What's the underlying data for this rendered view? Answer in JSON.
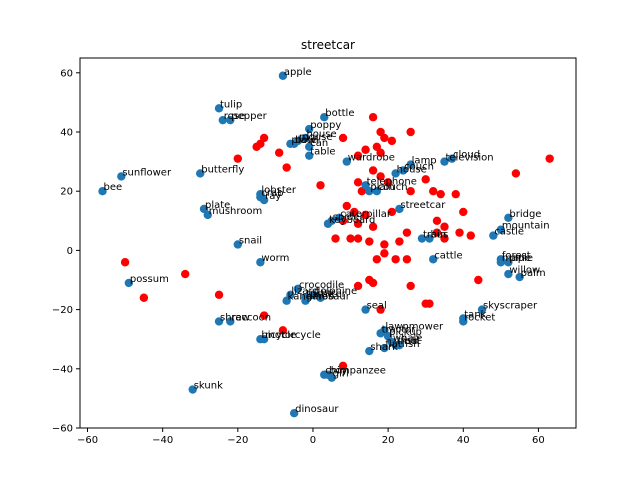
{
  "chart_data": {
    "type": "scatter",
    "title": "streetcar",
    "xlabel": "",
    "ylabel": "",
    "xlim": [
      -62,
      70
    ],
    "ylim": [
      -60,
      65
    ],
    "x_ticks": [
      -60,
      -40,
      -20,
      0,
      20,
      40,
      60
    ],
    "y_ticks": [
      -60,
      -40,
      -20,
      0,
      20,
      40,
      60
    ],
    "grid": false,
    "colors": {
      "labeled": "#1f77b4",
      "unlabeled": "#ff0000"
    },
    "labeled_points": [
      {
        "x": -8,
        "y": 59,
        "label": "apple"
      },
      {
        "x": -25,
        "y": 48,
        "label": "tulip"
      },
      {
        "x": -24,
        "y": 44,
        "label": "rose"
      },
      {
        "x": -22,
        "y": 44,
        "label": "pepper"
      },
      {
        "x": 3,
        "y": 45,
        "label": "bottle"
      },
      {
        "x": -1,
        "y": 41,
        "label": "poppy"
      },
      {
        "x": -2,
        "y": 38,
        "label": "house"
      },
      {
        "x": -4,
        "y": 37,
        "label": "mouse"
      },
      {
        "x": -5,
        "y": 36,
        "label": "bowl"
      },
      {
        "x": -6,
        "y": 36,
        "label": "plate"
      },
      {
        "x": -1,
        "y": 35,
        "label": "can"
      },
      {
        "x": -1,
        "y": 32,
        "label": "table"
      },
      {
        "x": 9,
        "y": 30,
        "label": "wardrobe"
      },
      {
        "x": 37,
        "y": 31,
        "label": "cloud"
      },
      {
        "x": 35,
        "y": 30,
        "label": "television"
      },
      {
        "x": 26,
        "y": 29,
        "label": "lamp"
      },
      {
        "x": 24,
        "y": 27,
        "label": "couch"
      },
      {
        "x": 22,
        "y": 26,
        "label": "house"
      },
      {
        "x": 14,
        "y": 22,
        "label": "telephone"
      },
      {
        "x": -30,
        "y": 26,
        "label": "butterfly"
      },
      {
        "x": -51,
        "y": 25,
        "label": "sunflower"
      },
      {
        "x": -56,
        "y": 20,
        "label": "bee"
      },
      {
        "x": 15,
        "y": 20,
        "label": "plain"
      },
      {
        "x": 17,
        "y": 20,
        "label": "couch"
      },
      {
        "x": -14,
        "y": 19,
        "label": "lobster"
      },
      {
        "x": -14,
        "y": 18,
        "label": "crab"
      },
      {
        "x": -13,
        "y": 17,
        "label": "ray"
      },
      {
        "x": -29,
        "y": 14,
        "label": "plate"
      },
      {
        "x": -28,
        "y": 12,
        "label": "mushroom"
      },
      {
        "x": 23,
        "y": 14,
        "label": "streetcar"
      },
      {
        "x": 7,
        "y": 11,
        "label": "caterpillar"
      },
      {
        "x": 5,
        "y": 10,
        "label": "spider"
      },
      {
        "x": 4,
        "y": 9,
        "label": "keyboard"
      },
      {
        "x": 52,
        "y": 11,
        "label": "bridge"
      },
      {
        "x": 50,
        "y": 7,
        "label": "mountain"
      },
      {
        "x": 48,
        "y": 5,
        "label": "castle"
      },
      {
        "x": 29,
        "y": 4,
        "label": "train"
      },
      {
        "x": 31,
        "y": 4,
        "label": "bus"
      },
      {
        "x": -20,
        "y": 2,
        "label": "snail"
      },
      {
        "x": 32,
        "y": -3,
        "label": "cattle"
      },
      {
        "x": 50,
        "y": -3,
        "label": "forest"
      },
      {
        "x": 50,
        "y": -4,
        "label": "maple"
      },
      {
        "x": 52,
        "y": -4,
        "label": "pine"
      },
      {
        "x": -14,
        "y": -4,
        "label": "worm"
      },
      {
        "x": 52,
        "y": -8,
        "label": "willow"
      },
      {
        "x": 55,
        "y": -9,
        "label": "palm"
      },
      {
        "x": -49,
        "y": -11,
        "label": "possum"
      },
      {
        "x": -4,
        "y": -13,
        "label": "crocodile"
      },
      {
        "x": -6,
        "y": -15,
        "label": "lizard"
      },
      {
        "x": -2,
        "y": -16,
        "label": "turtle"
      },
      {
        "x": 0,
        "y": -15,
        "label": "dolphine"
      },
      {
        "x": -2,
        "y": -17,
        "label": "dinosaur"
      },
      {
        "x": 2,
        "y": -16,
        "label": "otter"
      },
      {
        "x": -7,
        "y": -17,
        "label": "kangaroo"
      },
      {
        "x": 14,
        "y": -20,
        "label": "seal"
      },
      {
        "x": 45,
        "y": -20,
        "label": "skyscraper"
      },
      {
        "x": 40,
        "y": -24,
        "label": "rocket"
      },
      {
        "x": 40,
        "y": -23,
        "label": "tank"
      },
      {
        "x": -25,
        "y": -24,
        "label": "shrew"
      },
      {
        "x": -22,
        "y": -24,
        "label": "raccoon"
      },
      {
        "x": -14,
        "y": -30,
        "label": "bicycle"
      },
      {
        "x": -13,
        "y": -30,
        "label": "motorcycle"
      },
      {
        "x": 18,
        "y": -28,
        "label": "tractor"
      },
      {
        "x": 19,
        "y": -27,
        "label": "lawnmower"
      },
      {
        "x": 20,
        "y": -29,
        "label": "pickup"
      },
      {
        "x": 21,
        "y": -31,
        "label": "whale"
      },
      {
        "x": 19,
        "y": -33,
        "label": "flatfish"
      },
      {
        "x": 15,
        "y": -34,
        "label": "shark"
      },
      {
        "x": 22,
        "y": -32,
        "label": "trout"
      },
      {
        "x": 23,
        "y": -32,
        "label": "fish"
      },
      {
        "x": 3,
        "y": -42,
        "label": "chimpanzee"
      },
      {
        "x": 4,
        "y": -42,
        "label": "boy"
      },
      {
        "x": 5,
        "y": -43,
        "label": "girl"
      },
      {
        "x": -32,
        "y": -47,
        "label": "skunk"
      },
      {
        "x": -5,
        "y": -55,
        "label": "dinosaur"
      }
    ],
    "unlabeled_points": [
      {
        "x": 16,
        "y": 45
      },
      {
        "x": 18,
        "y": 40
      },
      {
        "x": 19,
        "y": 38
      },
      {
        "x": 21,
        "y": 37
      },
      {
        "x": 26,
        "y": 40
      },
      {
        "x": 17,
        "y": 35
      },
      {
        "x": 18,
        "y": 33
      },
      {
        "x": 14,
        "y": 34
      },
      {
        "x": 12,
        "y": 32
      },
      {
        "x": 8,
        "y": 38
      },
      {
        "x": -13,
        "y": 38
      },
      {
        "x": -14,
        "y": 36
      },
      {
        "x": -15,
        "y": 35
      },
      {
        "x": -20,
        "y": 31
      },
      {
        "x": -9,
        "y": 33
      },
      {
        "x": -7,
        "y": 28
      },
      {
        "x": 16,
        "y": 27
      },
      {
        "x": 18,
        "y": 25
      },
      {
        "x": 20,
        "y": 23
      },
      {
        "x": 12,
        "y": 23
      },
      {
        "x": 13,
        "y": 20
      },
      {
        "x": 26,
        "y": 20
      },
      {
        "x": 30,
        "y": 24
      },
      {
        "x": 32,
        "y": 20
      },
      {
        "x": 34,
        "y": 19
      },
      {
        "x": 38,
        "y": 19
      },
      {
        "x": 2,
        "y": 22
      },
      {
        "x": 9,
        "y": 15
      },
      {
        "x": 11,
        "y": 13
      },
      {
        "x": 14,
        "y": 12
      },
      {
        "x": 21,
        "y": 13
      },
      {
        "x": 8,
        "y": 10
      },
      {
        "x": 12,
        "y": 9
      },
      {
        "x": 16,
        "y": 8
      },
      {
        "x": 33,
        "y": 10
      },
      {
        "x": 35,
        "y": 8
      },
      {
        "x": 40,
        "y": 13
      },
      {
        "x": 33,
        "y": 6
      },
      {
        "x": 35,
        "y": 4
      },
      {
        "x": 25,
        "y": 6
      },
      {
        "x": 23,
        "y": 3
      },
      {
        "x": 19,
        "y": 2
      },
      {
        "x": 15,
        "y": 3
      },
      {
        "x": 12,
        "y": 4
      },
      {
        "x": 10,
        "y": 4
      },
      {
        "x": 6,
        "y": 4
      },
      {
        "x": 17,
        "y": -3
      },
      {
        "x": 22,
        "y": -3
      },
      {
        "x": 19,
        "y": -1
      },
      {
        "x": 25,
        "y": -3
      },
      {
        "x": 39,
        "y": 6
      },
      {
        "x": 42,
        "y": 5
      },
      {
        "x": 54,
        "y": 26
      },
      {
        "x": 63,
        "y": 31
      },
      {
        "x": 44,
        "y": -10
      },
      {
        "x": 26,
        "y": -12
      },
      {
        "x": 15,
        "y": -10
      },
      {
        "x": 16,
        "y": -11
      },
      {
        "x": 12,
        "y": -12
      },
      {
        "x": 30,
        "y": -18
      },
      {
        "x": 31,
        "y": -18
      },
      {
        "x": 18,
        "y": -20
      },
      {
        "x": -13,
        "y": -22
      },
      {
        "x": -8,
        "y": -27
      },
      {
        "x": -25,
        "y": -15
      },
      {
        "x": -45,
        "y": -16
      },
      {
        "x": -34,
        "y": -8
      },
      {
        "x": -50,
        "y": -4
      },
      {
        "x": 8,
        "y": -39
      }
    ]
  }
}
